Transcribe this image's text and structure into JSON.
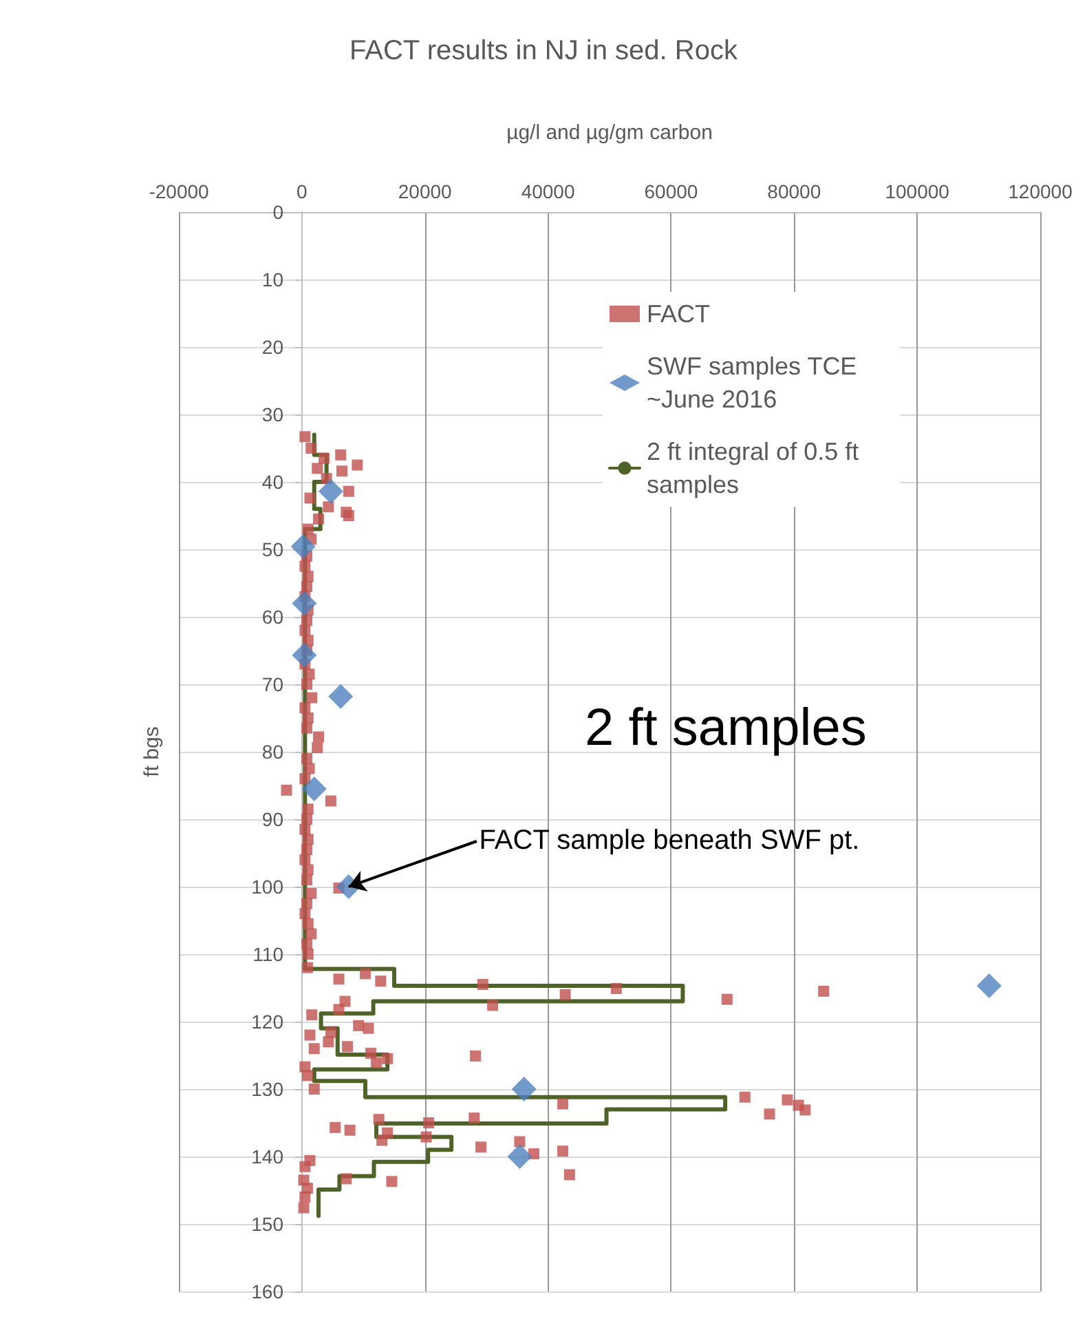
{
  "chart_data": {
    "type": "scatter",
    "title": "FACT results in NJ in sed. Rock",
    "xlabel": "µg/l and µg/gm carbon",
    "ylabel": "ft bgs",
    "xlim": [
      -20000,
      120000
    ],
    "xticks": [
      -20000,
      0,
      20000,
      40000,
      60000,
      80000,
      100000,
      120000
    ],
    "ylim": [
      160,
      0
    ],
    "yticks": [
      0,
      10,
      20,
      30,
      40,
      50,
      60,
      70,
      80,
      90,
      100,
      110,
      120,
      130,
      140,
      150,
      160
    ],
    "grid": true,
    "legend": "top right",
    "annotations": [
      "2 ft samples",
      {
        "text": "FACT sample beneath SWF pt.",
        "x": 7600,
        "y": 100
      }
    ],
    "series": [
      {
        "name": "FACT",
        "marker": "square",
        "color": "#c0504d",
        "x": [
          500,
          1500,
          3600,
          6300,
          9000,
          6500,
          2500,
          4000,
          1300,
          4300,
          7600,
          7200,
          7600,
          2700,
          1000,
          1500,
          null,
          800,
          500,
          1000,
          800,
          500,
          1000,
          800,
          500,
          1000,
          800,
          500,
          1200,
          800,
          1600,
          500,
          1000,
          800,
          2700,
          2500,
          800,
          1200,
          500,
          -2500,
          4700,
          1000,
          800,
          500,
          1000,
          800,
          500,
          1000,
          800,
          6000,
          1500,
          800,
          500,
          1000,
          1500,
          800,
          1000,
          900,
          6000,
          10300,
          12800,
          29400,
          31000,
          42800,
          51100,
          69100,
          84800,
          7000,
          6000,
          1600,
          9200,
          10800,
          1300,
          4700,
          2000,
          4300,
          7400,
          11200,
          13900,
          12100,
          28200,
          500,
          900,
          2000,
          42400,
          72000,
          76000,
          78900,
          80700,
          81800,
          12500,
          20600,
          28000,
          5400,
          7800,
          13900,
          13000,
          20200,
          29100,
          35400,
          37700,
          42400,
          43500,
          1300,
          500,
          7200,
          14600,
          300,
          900,
          500,
          300
        ],
        "values": [
          33.3,
          35,
          36.5,
          36,
          37.5,
          38.4,
          38,
          39.5,
          42.4,
          43.7,
          41.4,
          44.5,
          45,
          45.5,
          47,
          48.5,
          null,
          51,
          52.5,
          54,
          55.5,
          57,
          59,
          60.5,
          62,
          63.5,
          65,
          67,
          68.5,
          70,
          72,
          73.5,
          75,
          76.5,
          77.8,
          79.4,
          81,
          82.5,
          84,
          85.7,
          87.3,
          88.5,
          90,
          91.5,
          93,
          94.5,
          96,
          97.5,
          99,
          100.2,
          101,
          102.5,
          104,
          105.5,
          107,
          108.5,
          110,
          112,
          113.7,
          112.9,
          114,
          114.5,
          117.6,
          116,
          115.1,
          116.7,
          115.5,
          117,
          118.2,
          119,
          120.6,
          121,
          122,
          121.6,
          124,
          123,
          123.7,
          124.7,
          125.5,
          126.1,
          125.1,
          126.7,
          128,
          130,
          132.2,
          131.2,
          133.7,
          131.6,
          132.4,
          133.1,
          134.5,
          135,
          134.3,
          135.7,
          136.1,
          136.5,
          137.6,
          137.1,
          138.6,
          137.8,
          139.6,
          139.2,
          142.7,
          140.6,
          141.5,
          143.3,
          143.7,
          143.5,
          144.7,
          146,
          147.6
        ]
      },
      {
        "name": "SWF samples TCE ~June 2016",
        "marker": "diamond",
        "color": "#4f81bd",
        "x": [
          4700,
          200,
          400,
          400,
          6300,
          2000,
          7600,
          111700,
          36100,
          35400
        ],
        "values": [
          41.4,
          49.6,
          58,
          65.7,
          71.8,
          85.5,
          100,
          114.7,
          130,
          140
        ]
      },
      {
        "name": "2 ft integral of 0.5 ft samples",
        "type": "line",
        "marker": "none",
        "line_style": "solid",
        "color": "#4f6228",
        "x": [
          2000,
          2000,
          4000,
          4000,
          2000,
          2000,
          3000,
          3000,
          500,
          500,
          15000,
          15000,
          61900,
          61900,
          11600,
          11600,
          3100,
          3100,
          5800,
          5800,
          13900,
          13900,
          2000,
          2000,
          10300,
          10300,
          68800,
          68800,
          49500,
          49500,
          12100,
          12100,
          24300,
          24300,
          20500,
          20500,
          11700,
          11700,
          6100,
          6100,
          2700,
          2700
        ],
        "values": [
          33,
          36,
          36,
          40,
          40,
          44,
          44,
          47,
          47,
          112.2,
          112.2,
          114.7,
          114.7,
          117,
          117,
          118.8,
          118.8,
          121,
          121,
          124.9,
          124.9,
          127.1,
          127.1,
          128.8,
          128.8,
          131.2,
          131.2,
          133,
          133,
          135.1,
          135.1,
          137.1,
          137.1,
          139,
          139,
          140.8,
          140.8,
          142.9,
          142.9,
          144.9,
          144.9,
          148.8
        ]
      }
    ]
  }
}
